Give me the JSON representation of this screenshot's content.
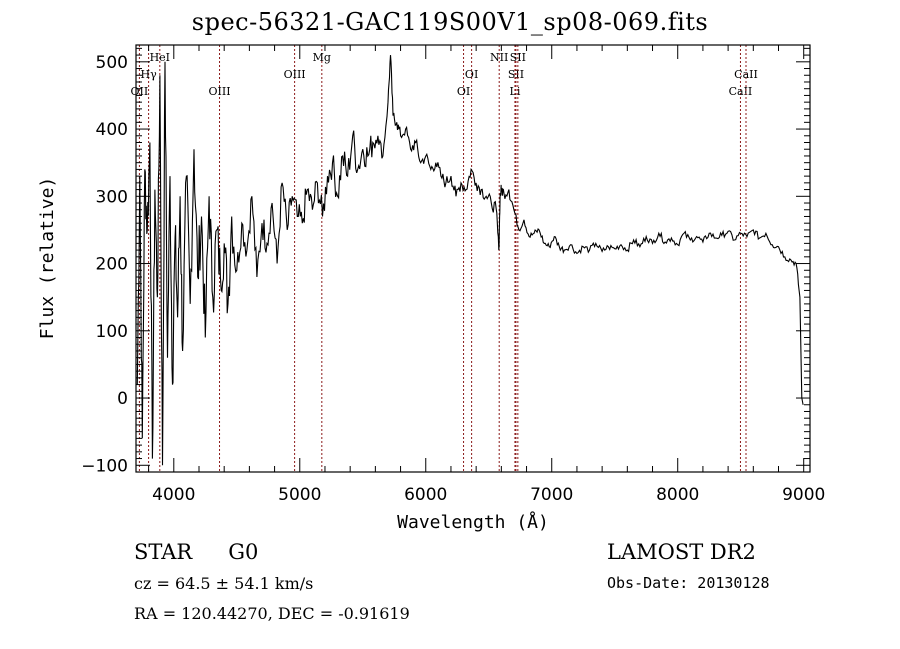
{
  "title": "spec-56321-GAC119S00V1_sp08-069.fits",
  "info": {
    "class": "STAR",
    "subclass": "G0",
    "redshift": "cz = 64.5 ± 54.1 km/s",
    "coords": "RA = 120.44270, DEC =  -0.91619",
    "survey": "LAMOST DR2",
    "obs_date": "Obs-Date: 20130128"
  },
  "colors": {
    "line_marker": "#8b1a1a",
    "spectrum": "#000000",
    "axis": "#000000"
  },
  "chart_data": {
    "type": "line",
    "title": "spec-56321-GAC119S00V1_sp08-069.fits",
    "xlabel": "Wavelength (Å)",
    "ylabel": "Flux (relative)",
    "xlim": [
      3700,
      9050
    ],
    "ylim": [
      -110,
      525
    ],
    "xticks": [
      4000,
      5000,
      6000,
      7000,
      8000,
      9000
    ],
    "xtick_labels": [
      "4000",
      "5000",
      "6000",
      "7000",
      "8000",
      "9000"
    ],
    "yticks": [
      -100,
      0,
      100,
      200,
      300,
      400,
      500
    ],
    "ytick_labels": [
      "−100",
      "0",
      "100",
      "200",
      "300",
      "400",
      "500"
    ],
    "grid": false,
    "series": [
      {
        "name": "spectrum",
        "x": [
          3710,
          3730,
          3750,
          3770,
          3790,
          3810,
          3830,
          3850,
          3870,
          3890,
          3910,
          3930,
          3950,
          3970,
          3990,
          4010,
          4030,
          4050,
          4070,
          4100,
          4130,
          4160,
          4190,
          4220,
          4250,
          4280,
          4310,
          4340,
          4370,
          4400,
          4430,
          4460,
          4500,
          4540,
          4580,
          4620,
          4660,
          4700,
          4740,
          4780,
          4820,
          4860,
          4900,
          4940,
          4980,
          5020,
          5060,
          5100,
          5140,
          5180,
          5220,
          5260,
          5300,
          5340,
          5380,
          5420,
          5460,
          5500,
          5540,
          5580,
          5620,
          5660,
          5700,
          5720,
          5740,
          5770,
          5800,
          5840,
          5880,
          5920,
          5960,
          6000,
          6040,
          6080,
          6120,
          6160,
          6200,
          6240,
          6280,
          6320,
          6360,
          6400,
          6440,
          6480,
          6520,
          6560,
          6580,
          6590,
          6600,
          6620,
          6660,
          6700,
          6740,
          6780,
          6820,
          6860,
          6900,
          6940,
          6980,
          7020,
          7060,
          7100,
          7150,
          7200,
          7250,
          7300,
          7350,
          7400,
          7450,
          7500,
          7550,
          7600,
          7650,
          7700,
          7750,
          7800,
          7850,
          7900,
          7950,
          8000,
          8050,
          8100,
          8150,
          8200,
          8250,
          8300,
          8350,
          8400,
          8450,
          8500,
          8550,
          8600,
          8650,
          8700,
          8750,
          8800,
          8850,
          8900,
          8940,
          8970,
          8985,
          8995
        ],
        "y": [
          20,
          330,
          -60,
          340,
          250,
          380,
          -90,
          310,
          150,
          480,
          -100,
          500,
          60,
          330,
          20,
          240,
          120,
          300,
          70,
          330,
          140,
          370,
          180,
          270,
          90,
          300,
          150,
          250,
          180,
          230,
          140,
          270,
          190,
          260,
          220,
          300,
          180,
          260,
          230,
          290,
          200,
          320,
          250,
          300,
          270,
          260,
          310,
          280,
          320,
          270,
          330,
          350,
          300,
          360,
          330,
          390,
          340,
          370,
          360,
          380,
          390,
          360,
          440,
          510,
          420,
          410,
          390,
          400,
          370,
          380,
          350,
          360,
          340,
          350,
          330,
          320,
          330,
          300,
          320,
          310,
          340,
          320,
          310,
          300,
          290,
          280,
          220,
          300,
          310,
          305,
          310,
          280,
          250,
          265,
          240,
          245,
          250,
          230,
          225,
          240,
          225,
          220,
          228,
          215,
          225,
          220,
          230,
          218,
          225,
          222,
          228,
          220,
          235,
          225,
          240,
          230,
          245,
          232,
          238,
          228,
          245,
          235,
          240,
          232,
          245,
          238,
          242,
          248,
          235,
          245,
          240,
          250,
          238,
          245,
          228,
          225,
          210,
          205,
          200,
          150,
          0,
          -10
        ]
      }
    ],
    "line_markers": [
      {
        "label": "OII",
        "wavelength": 3727,
        "row": 3
      },
      {
        "label": "Hγ",
        "wavelength": 3800,
        "row": 2
      },
      {
        "label": "HeI",
        "wavelength": 3889,
        "row": 1
      },
      {
        "label": "OIII",
        "wavelength": 4363,
        "row": 3
      },
      {
        "label": "OIII",
        "wavelength": 4959,
        "row": 2
      },
      {
        "label": "Mg",
        "wavelength": 5175,
        "row": 1
      },
      {
        "label": "OI",
        "wavelength": 6300,
        "row": 3
      },
      {
        "label": "OI",
        "wavelength": 6364,
        "row": 2
      },
      {
        "label": "NII",
        "wavelength": 6583,
        "row": 1
      },
      {
        "label": "Li",
        "wavelength": 6708,
        "row": 3
      },
      {
        "label": "SII",
        "wavelength": 6716,
        "row": 2
      },
      {
        "label": "SII",
        "wavelength": 6731,
        "row": 1
      },
      {
        "label": "CaII",
        "wavelength": 8498,
        "row": 3
      },
      {
        "label": "CaII",
        "wavelength": 8542,
        "row": 2
      }
    ]
  }
}
